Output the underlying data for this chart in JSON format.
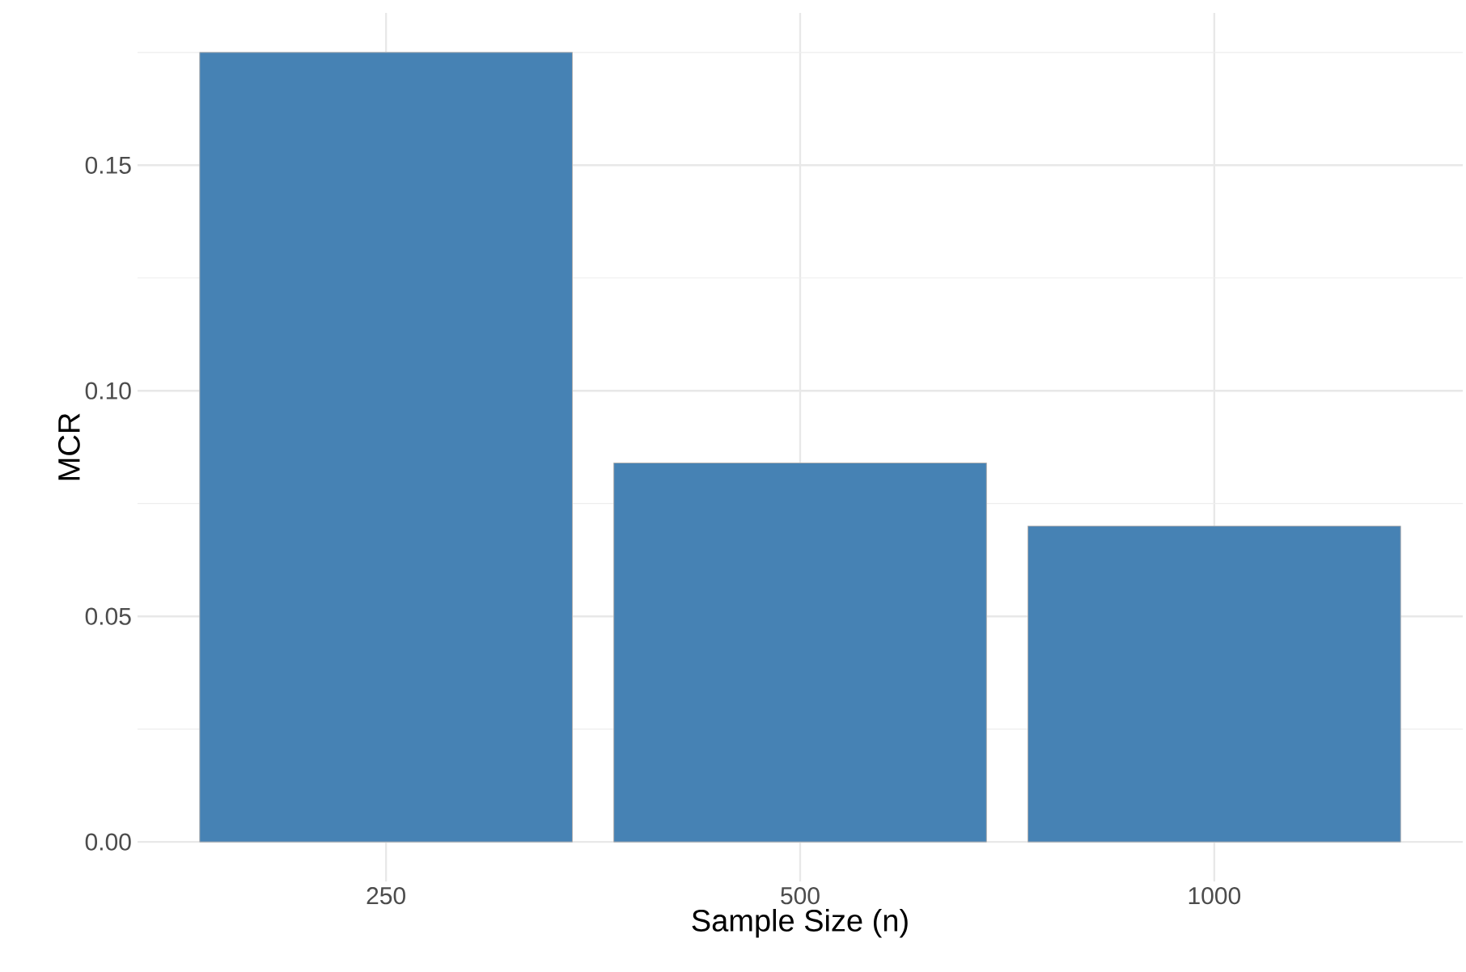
{
  "chart_data": {
    "type": "bar",
    "xlabel": "Sample Size (n)",
    "ylabel": "MCR",
    "categories": [
      "250",
      "500",
      "1000"
    ],
    "values": [
      0.175,
      0.084,
      0.07
    ],
    "color": "#4682b4",
    "ylim": [
      -0.00875,
      0.18375
    ],
    "yticks": [
      {
        "value": 0.0,
        "label": "0.00"
      },
      {
        "value": 0.025,
        "label": null
      },
      {
        "value": 0.05,
        "label": "0.05"
      },
      {
        "value": 0.075,
        "label": null
      },
      {
        "value": 0.1,
        "label": "0.10"
      },
      {
        "value": 0.125,
        "label": null
      },
      {
        "value": 0.15,
        "label": "0.15"
      },
      {
        "value": 0.175,
        "label": null
      }
    ],
    "grid": true
  }
}
